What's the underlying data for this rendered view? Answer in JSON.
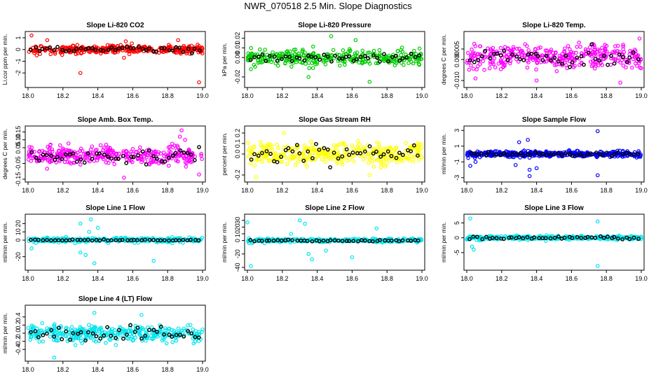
{
  "title": "NWR_070518  2.5 Min. Slope Diagnostics",
  "colors": {
    "black": "#000000",
    "red": "#ff0000",
    "green": "#00cc00",
    "magenta": "#ff00ff",
    "yellow": "#ffff00",
    "blue": "#0000ff",
    "cyan": "#00e5ee"
  },
  "chart_data": [
    {
      "type": "scatter",
      "title": "Slope Li-820 CO2",
      "ylabel": "Li.cor ppm per min.",
      "color": "red",
      "x_range": [
        18.0,
        19.0
      ],
      "ylim": [
        -3,
        1.3
      ],
      "xticks": [
        "18.0",
        "18.2",
        "18.4",
        "18.6",
        "18.8",
        "19.0"
      ],
      "xticks_at": [
        18.0,
        18.2,
        18.4,
        18.6,
        18.8,
        19.0
      ],
      "yticks": [
        "-2",
        "-1",
        "0",
        "1"
      ],
      "yticks_at": [
        -2,
        -1,
        0,
        1
      ],
      "noise": [
        0,
        0.25
      ],
      "outliers": [
        [
          18.02,
          1.2
        ],
        [
          18.3,
          -2.0
        ],
        [
          18.98,
          -2.8
        ],
        [
          18.11,
          0.8
        ],
        [
          18.56,
          0.7
        ],
        [
          18.86,
          0.8
        ],
        [
          18.05,
          -0.5
        ],
        [
          18.55,
          -0.7
        ]
      ],
      "black_noise": [
        0,
        0.2
      ],
      "n_color": 360,
      "n_black": 45,
      "seed": 11
    },
    {
      "type": "scatter",
      "title": "Slope Li-820 Pressure",
      "ylabel": "kPa per min.",
      "color": "green",
      "x_range": [
        18.0,
        19.0
      ],
      "ylim": [
        -0.028,
        0.024
      ],
      "xticks": [
        "18.0",
        "18.2",
        "18.4",
        "18.6",
        "18.8",
        "19.0"
      ],
      "xticks_at": [
        18.0,
        18.2,
        18.4,
        18.6,
        18.8,
        19.0
      ],
      "yticks": [
        "-0.02",
        "0.00",
        "0.01",
        "0.02"
      ],
      "yticks_at": [
        -0.02,
        0,
        0.01,
        0.02
      ],
      "noise": [
        0,
        0.006
      ],
      "outliers": [
        [
          18.48,
          0.022
        ],
        [
          18.35,
          -0.02
        ],
        [
          18.7,
          -0.025
        ],
        [
          18.02,
          -0.012
        ],
        [
          18.62,
          0.018
        ]
      ],
      "black_noise": [
        0,
        0.003
      ],
      "n_color": 320,
      "n_black": 45,
      "seed": 22
    },
    {
      "type": "scatter",
      "title": "Slope Li-820 Temp.",
      "ylabel": "degrees C per min.",
      "color": "magenta",
      "x_range": [
        18.0,
        19.0
      ],
      "ylim": [
        -0.012,
        0.012
      ],
      "xticks": [
        "18.0",
        "18.2",
        "18.4",
        "18.6",
        "18.8",
        "19.0"
      ],
      "xticks_at": [
        18.0,
        18.2,
        18.4,
        18.6,
        18.8,
        19.0
      ],
      "yticks": [
        "-0.010",
        "0.000",
        "0.005"
      ],
      "yticks_at": [
        -0.01,
        0,
        0.005
      ],
      "noise": [
        0.0015,
        0.004
      ],
      "outliers": [
        [
          18.99,
          0.01
        ],
        [
          18.05,
          -0.009
        ],
        [
          18.4,
          -0.01
        ],
        [
          18.88,
          -0.011
        ]
      ],
      "black_noise": [
        0.001,
        0.003
      ],
      "n_color": 360,
      "n_black": 45,
      "seed": 33
    },
    {
      "type": "scatter",
      "title": "Slope Amb. Box Temp.",
      "ylabel": "degrees C per min.",
      "color": "magenta",
      "x_range": [
        18.0,
        19.0
      ],
      "ylim": [
        -0.15,
        0.17
      ],
      "xticks": [
        "18.0",
        "18.2",
        "18.4",
        "18.6",
        "18.8",
        "19.0"
      ],
      "xticks_at": [
        18.0,
        18.2,
        18.4,
        18.6,
        18.8,
        19.0
      ],
      "yticks": [
        "-0.15",
        "-0.05",
        "0.05",
        "0.10",
        "0.15"
      ],
      "yticks_at": [
        -0.15,
        -0.05,
        0.05,
        0.1,
        0.15
      ],
      "noise": [
        0,
        0.04
      ],
      "outliers": [
        [
          18.88,
          0.16
        ],
        [
          18.87,
          0.12
        ],
        [
          18.98,
          -0.12
        ],
        [
          18.55,
          -0.14
        ],
        [
          18.9,
          0.1
        ]
      ],
      "black_noise": [
        0,
        0.035
      ],
      "n_color": 360,
      "n_black": 45,
      "seed": 44
    },
    {
      "type": "scatter",
      "title": "Slope Gas Stream RH",
      "ylabel": "percent per min.",
      "color": "yellow",
      "x_range": [
        18.0,
        19.0
      ],
      "ylim": [
        -0.24,
        0.24
      ],
      "xticks": [
        "18.0",
        "18.2",
        "18.4",
        "18.6",
        "18.8",
        "19.0"
      ],
      "xticks_at": [
        18.0,
        18.2,
        18.4,
        18.6,
        18.8,
        19.0
      ],
      "yticks": [
        "-0.2",
        "0.0",
        "0.1",
        "0.2"
      ],
      "yticks_at": [
        -0.2,
        0,
        0.1,
        0.2
      ],
      "noise": [
        0,
        0.07
      ],
      "outliers": [
        [
          18.21,
          0.2
        ],
        [
          18.05,
          -0.22
        ],
        [
          18.7,
          -0.2
        ]
      ],
      "black_noise": [
        0,
        0.07
      ],
      "n_color": 360,
      "n_black": 45,
      "seed": 55
    },
    {
      "type": "scatter",
      "title": "Slope Sample Flow",
      "ylabel": "ml/min per min.",
      "color": "blue",
      "x_range": [
        18.0,
        19.0
      ],
      "ylim": [
        -3.2,
        3.2
      ],
      "xticks": [
        "18.0",
        "18.2",
        "18.4",
        "18.6",
        "18.8",
        "19.0"
      ],
      "xticks_at": [
        18.0,
        18.2,
        18.4,
        18.6,
        18.8,
        19.0
      ],
      "yticks": [
        "-3",
        "-1",
        "1",
        "3"
      ],
      "yticks_at": [
        -3,
        -1,
        1,
        3
      ],
      "noise": [
        0,
        0.25
      ],
      "outliers": [
        [
          18.75,
          2.9
        ],
        [
          18.3,
          1.5
        ],
        [
          18.36,
          -2.8
        ],
        [
          18.02,
          -1.5
        ],
        [
          18.05,
          -1.0
        ],
        [
          18.36,
          -2.0
        ],
        [
          18.4,
          -1.8
        ],
        [
          18.28,
          -1.4
        ],
        [
          18.75,
          -2.7
        ],
        [
          18.35,
          1.8
        ]
      ],
      "black_noise": [
        0,
        0.2
      ],
      "n_color": 420,
      "n_black": 45,
      "seed": 66
    },
    {
      "type": "scatter",
      "title": "Slope Line 1 Flow",
      "ylabel": "ml/min per min.",
      "color": "cyan",
      "x_range": [
        18.0,
        19.0
      ],
      "ylim": [
        -33,
        28
      ],
      "xticks": [
        "18.0",
        "18.2",
        "18.4",
        "18.6",
        "18.8",
        "19.0"
      ],
      "xticks_at": [
        18.0,
        18.2,
        18.4,
        18.6,
        18.8,
        19.0
      ],
      "yticks": [
        "-20",
        "0",
        "10",
        "20"
      ],
      "yticks_at": [
        -20,
        0,
        10,
        20
      ],
      "noise": [
        0,
        2
      ],
      "outliers": [
        [
          18.3,
          20
        ],
        [
          18.36,
          25
        ],
        [
          18.38,
          -28
        ],
        [
          18.3,
          -15
        ],
        [
          18.35,
          10
        ],
        [
          18.72,
          -25
        ],
        [
          18.02,
          -10
        ],
        [
          18.33,
          -18
        ],
        [
          18.4,
          15
        ]
      ],
      "black_noise": [
        0,
        0.5
      ],
      "n_color": 300,
      "n_black": 45,
      "seed": 77
    },
    {
      "type": "scatter",
      "title": "Slope Line 2 Flow",
      "ylabel": "ml/min per min.",
      "color": "cyan",
      "x_range": [
        18.0,
        19.0
      ],
      "ylim": [
        -40,
        35
      ],
      "xticks": [
        "18.0",
        "18.2",
        "18.4",
        "18.6",
        "18.8",
        "19.0"
      ],
      "xticks_at": [
        18.0,
        18.2,
        18.4,
        18.6,
        18.8,
        19.0
      ],
      "yticks": [
        "-40",
        "-20",
        "0",
        "10",
        "20",
        "30"
      ],
      "yticks_at": [
        -40,
        -20,
        0,
        10,
        20,
        30
      ],
      "noise": [
        0,
        2
      ],
      "outliers": [
        [
          18.0,
          27
        ],
        [
          18.3,
          30
        ],
        [
          18.33,
          25
        ],
        [
          18.02,
          -38
        ],
        [
          18.35,
          -20
        ],
        [
          18.6,
          -25
        ],
        [
          18.74,
          18
        ],
        [
          18.25,
          10
        ],
        [
          18.37,
          -28
        ],
        [
          18.45,
          -15
        ]
      ],
      "black_noise": [
        0,
        1
      ],
      "n_color": 300,
      "n_black": 45,
      "seed": 88
    },
    {
      "type": "scatter",
      "title": "Slope Line 3 Flow",
      "ylabel": "ml/min per min.",
      "color": "cyan",
      "x_range": [
        18.0,
        19.0
      ],
      "ylim": [
        -10,
        7
      ],
      "xticks": [
        "18.0",
        "18.2",
        "18.4",
        "18.6",
        "18.8",
        "19.0"
      ],
      "xticks_at": [
        18.0,
        18.2,
        18.4,
        18.6,
        18.8,
        19.0
      ],
      "yticks": [
        "-5",
        "0",
        "5"
      ],
      "yticks_at": [
        -5,
        0,
        5
      ],
      "noise": [
        0,
        0.5
      ],
      "outliers": [
        [
          18.02,
          6.5
        ],
        [
          18.75,
          -9.5
        ],
        [
          18.04,
          -4
        ],
        [
          18.03,
          -3
        ],
        [
          18.75,
          5.5
        ]
      ],
      "black_noise": [
        0,
        0.4
      ],
      "n_color": 320,
      "n_black": 45,
      "seed": 99
    },
    {
      "type": "scatter",
      "title": "Slope Line 4 (LT) Flow",
      "ylabel": "ml/min per min.",
      "color": "cyan",
      "x_range": [
        18.0,
        19.0
      ],
      "ylim": [
        -0.62,
        0.62
      ],
      "xticks": [
        "18.0",
        "18.2",
        "18.4",
        "18.6",
        "18.8",
        "19.0"
      ],
      "xticks_at": [
        18.0,
        18.2,
        18.4,
        18.6,
        18.8,
        19.0
      ],
      "yticks": [
        "-0.4",
        "-0.2",
        "0.0",
        "0.2",
        "0.4"
      ],
      "yticks_at": [
        -0.4,
        -0.2,
        0,
        0.2,
        0.4
      ],
      "noise": [
        0,
        0.15
      ],
      "outliers": [
        [
          18.38,
          0.5
        ],
        [
          18.15,
          -0.6
        ],
        [
          18.65,
          0.45
        ]
      ],
      "black_noise": [
        0,
        0.15
      ],
      "n_color": 360,
      "n_black": 45,
      "seed": 111
    }
  ]
}
